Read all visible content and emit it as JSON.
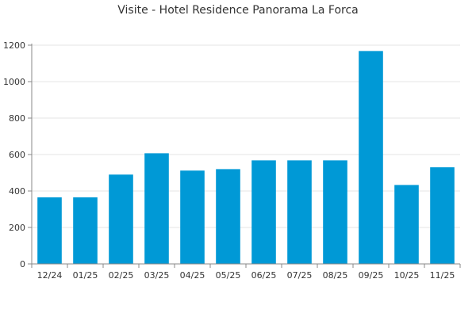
{
  "chart_data": {
    "type": "bar",
    "title": "Visite - Hotel Residence Panorama La Forca",
    "xlabel": "",
    "ylabel": "",
    "categories": [
      "12/24",
      "01/25",
      "02/25",
      "03/25",
      "04/25",
      "05/25",
      "06/25",
      "07/25",
      "08/25",
      "09/25",
      "10/25",
      "11/25"
    ],
    "values": [
      365,
      365,
      490,
      607,
      512,
      520,
      568,
      568,
      568,
      1168,
      433,
      530
    ],
    "ylim": [
      0,
      1200
    ],
    "yticks": [
      0,
      200,
      400,
      600,
      800,
      1000,
      1200
    ],
    "grid": true,
    "legend": "none",
    "bar_color": "#0099D6",
    "grid_color": "#e6e6e6",
    "axis_color": "#888888"
  }
}
